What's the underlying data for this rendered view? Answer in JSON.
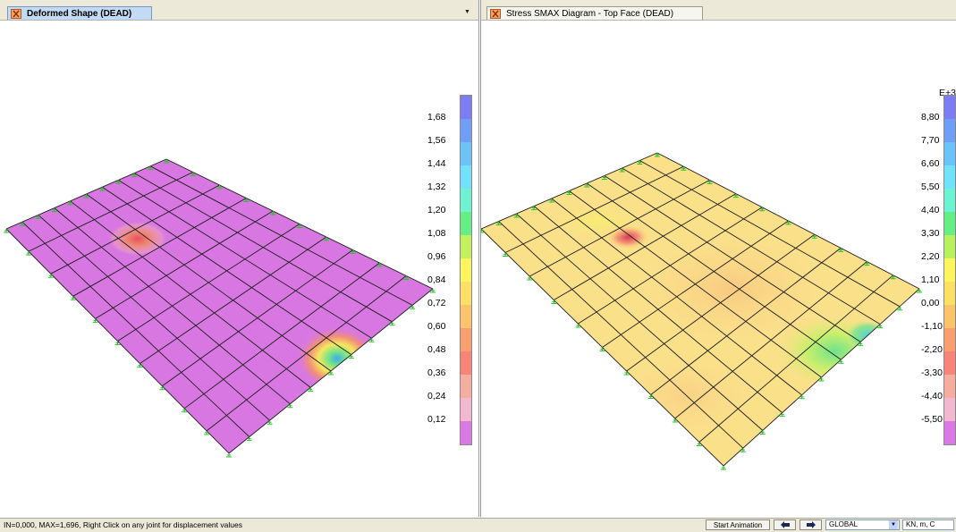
{
  "left_window": {
    "tab_title": "Deformed Shape (DEAD)",
    "tab_icon": "frame-icon",
    "dropdown_arrow": "▼",
    "mesh_fill": "#d877e2",
    "legend": {
      "labels": [
        "1,68",
        "1,56",
        "1,44",
        "1,32",
        "1,20",
        "1,08",
        "0,96",
        "0,84",
        "0,72",
        "0,60",
        "0,48",
        "0,36",
        "0,24",
        "0,12"
      ],
      "colors": [
        "#7c7cf4",
        "#6f9ef6",
        "#6cc3f9",
        "#72e2fa",
        "#6ef3d2",
        "#64ef86",
        "#c2f15c",
        "#fcf55d",
        "#fce063",
        "#fbc46a",
        "#f99f6e",
        "#f88379",
        "#f5ae9d",
        "#f1b8cf",
        "#da79e6"
      ]
    }
  },
  "right_window": {
    "tab_title": "Stress SMAX Diagram - Top Face   (DEAD)",
    "tab_icon": "frame-icon",
    "mesh_fill": "#fbe08a",
    "legend": {
      "exponent": "E+3",
      "labels": [
        "8,80",
        "7,70",
        "6,60",
        "5,50",
        "4,40",
        "3,30",
        "2,20",
        "1,10",
        "0,00",
        "-1,10",
        "-2,20",
        "-3,30",
        "-4,40",
        "-5,50"
      ],
      "colors": [
        "#7c7cf4",
        "#6f9ef6",
        "#6cc3f9",
        "#72e2fa",
        "#6ef3d2",
        "#64ef86",
        "#b8f05e",
        "#fcf55d",
        "#fce063",
        "#fbc46a",
        "#f99f6e",
        "#f88379",
        "#f5ae9d",
        "#f1b8cf",
        "#da79e6"
      ]
    }
  },
  "status_bar": {
    "text": "IN=0,000, MAX=1,696, Right Click on any joint for displacement values",
    "start_animation_label": "Start Animation",
    "prev_icon": "arrow-left-icon",
    "next_icon": "arrow-right-icon",
    "coord_system": "GLOBAL",
    "units": "KN, m, C"
  }
}
